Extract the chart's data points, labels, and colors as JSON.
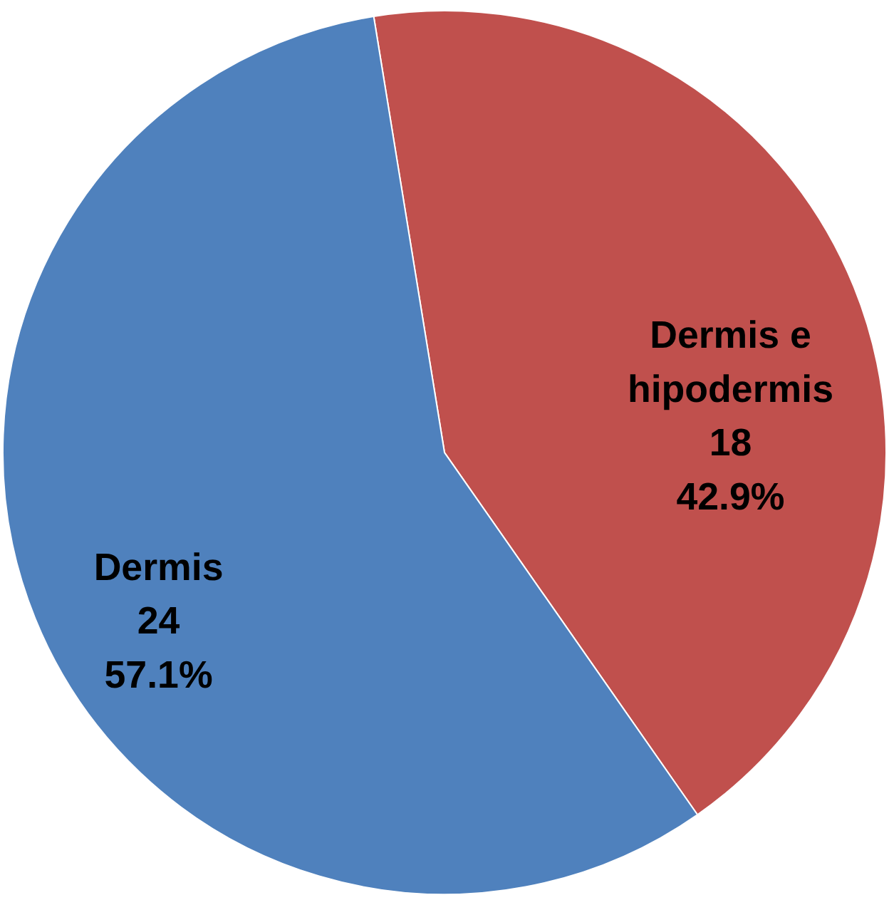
{
  "chart_data": {
    "type": "pie",
    "categories": [
      "Dermis e hipodermis",
      "Dermis"
    ],
    "values": [
      18,
      24
    ],
    "colors": [
      "#c0504d",
      "#4f81bd"
    ],
    "value_labels": [
      "18\n42.9%",
      "24\n57.1%"
    ],
    "legend": false
  }
}
